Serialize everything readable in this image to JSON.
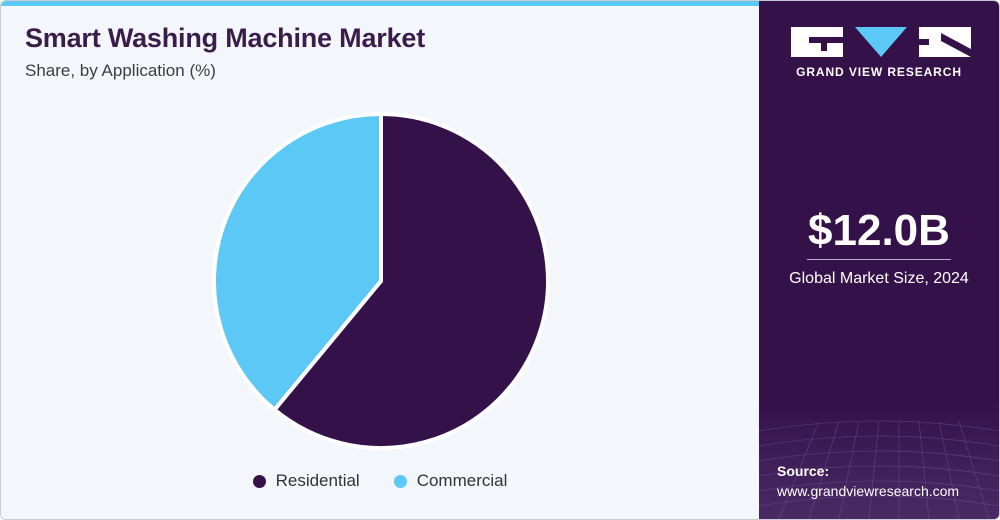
{
  "header": {
    "title": "Smart Washing Machine Market",
    "subtitle": "Share, by Application (%)"
  },
  "chart_data": {
    "type": "pie",
    "categories": [
      "Residential",
      "Commercial"
    ],
    "values": [
      61,
      39
    ],
    "colors": [
      "#35114a",
      "#5bc8f5"
    ],
    "legend": "bottom-center"
  },
  "sidebar": {
    "brand": "GRAND VIEW RESEARCH",
    "market_value": "$12.0B",
    "market_label": "Global Market Size, 2024",
    "source_label": "Source:",
    "source_url": "www.grandviewresearch.com"
  },
  "colors": {
    "accent": "#5bc8f5",
    "brand_dark": "#35114a",
    "title": "#3a1d4a"
  }
}
